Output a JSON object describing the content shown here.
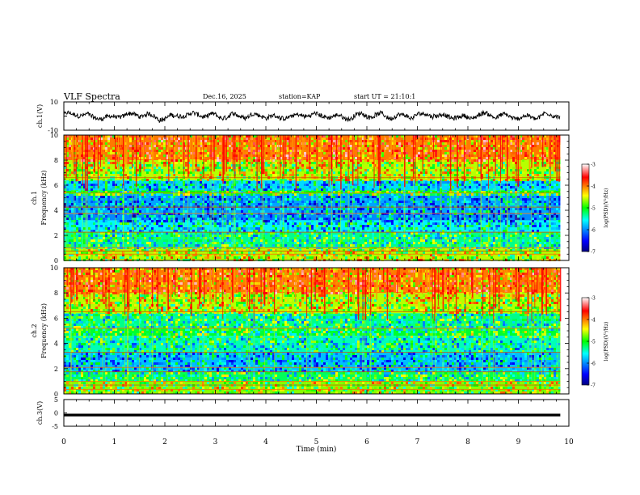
{
  "header": {
    "title": "VLF Spectra",
    "date": "Dec.16, 2025",
    "station": "station=KAP",
    "start": "start UT =  21:10:1"
  },
  "chart_data": [
    {
      "type": "line",
      "panel": "ch1-waveform",
      "ylabel": "ch.1(V)",
      "ylim": [
        -10,
        10
      ],
      "ytick_labels": [
        "10",
        "-10"
      ],
      "xlim": [
        0,
        10
      ],
      "data_extent_min": 9.83,
      "series": [
        {
          "name": "ch.1",
          "description_range": [
            -5,
            5
          ]
        }
      ]
    },
    {
      "type": "heatmap",
      "panel": "ch1-spectrogram",
      "ylabel": "ch.1",
      "ylabel2": "Frequency (kHz)",
      "ylim": [
        0,
        10
      ],
      "ytick_labels": [
        "0",
        "2",
        "4",
        "6",
        "8",
        "10"
      ],
      "xlim": [
        0,
        10
      ],
      "data_extent_min": 9.83,
      "bands_khz": [
        {
          "lo": 0.0,
          "hi": 1.0,
          "level": -4.6
        },
        {
          "lo": 1.0,
          "hi": 2.3,
          "level": -5.3
        },
        {
          "lo": 2.3,
          "hi": 3.2,
          "level": -5.6
        },
        {
          "lo": 3.2,
          "hi": 3.7,
          "level": -6.0
        },
        {
          "lo": 3.7,
          "hi": 5.3,
          "level": -5.9
        },
        {
          "lo": 5.3,
          "hi": 5.6,
          "level": -5.0
        },
        {
          "lo": 5.6,
          "hi": 6.4,
          "level": -5.7
        },
        {
          "lo": 6.4,
          "hi": 8.0,
          "level": -4.6
        },
        {
          "lo": 8.0,
          "hi": 10.0,
          "level": -4.0
        }
      ],
      "lines_khz": [
        0.5,
        0.75,
        1.0,
        2.25,
        3.75,
        4.25,
        5.4,
        6.6
      ],
      "colorbar": {
        "label": "log(PSD)(V²/Hz)",
        "range": [
          -7,
          -3
        ],
        "tick_labels": [
          "-3",
          "-4",
          "-5",
          "-6",
          "-7"
        ]
      }
    },
    {
      "type": "heatmap",
      "panel": "ch2-spectrogram",
      "ylabel": "ch.2",
      "ylabel2": "Frequency (kHz)",
      "ylim": [
        0,
        10
      ],
      "ytick_labels": [
        "0",
        "2",
        "4",
        "6",
        "8",
        "10"
      ],
      "xlim": [
        0,
        10
      ],
      "data_extent_min": 9.83,
      "bands_khz": [
        {
          "lo": 0.0,
          "hi": 1.0,
          "level": -4.7
        },
        {
          "lo": 1.0,
          "hi": 1.8,
          "level": -5.2
        },
        {
          "lo": 1.8,
          "hi": 3.3,
          "level": -5.8
        },
        {
          "lo": 3.3,
          "hi": 4.6,
          "level": -5.4
        },
        {
          "lo": 4.6,
          "hi": 5.2,
          "level": -5.1
        },
        {
          "lo": 5.2,
          "hi": 6.4,
          "level": -5.3
        },
        {
          "lo": 6.4,
          "hi": 8.0,
          "level": -4.6
        },
        {
          "lo": 8.0,
          "hi": 10.0,
          "level": -4.0
        }
      ],
      "lines_khz": [
        0.35,
        0.7,
        1.0,
        1.75,
        2.1,
        3.3,
        5.2,
        6.5
      ],
      "colorbar": {
        "label": "log(PSD)(V²/Hz)",
        "range": [
          -7,
          -3
        ],
        "tick_labels": [
          "-3",
          "-4",
          "-5",
          "-6",
          "-7"
        ]
      }
    },
    {
      "type": "line",
      "panel": "ch3-waveform",
      "ylabel": "ch.3(V)",
      "ylim": [
        -5,
        5
      ],
      "ytick_labels": [
        "5",
        "0",
        "-5"
      ],
      "xlim": [
        0,
        10
      ],
      "data_extent_min": 9.83,
      "series": [
        {
          "name": "ch.3",
          "level": -0.8,
          "band_half_width": 0.5
        }
      ]
    }
  ],
  "xaxis": {
    "label": "Time (min)",
    "tick_labels": [
      "0",
      "1",
      "2",
      "3",
      "4",
      "5",
      "6",
      "7",
      "8",
      "9",
      "10"
    ],
    "xlim": [
      0,
      10
    ]
  },
  "colors": {
    "trace": "#000000",
    "frame": "#000000"
  }
}
